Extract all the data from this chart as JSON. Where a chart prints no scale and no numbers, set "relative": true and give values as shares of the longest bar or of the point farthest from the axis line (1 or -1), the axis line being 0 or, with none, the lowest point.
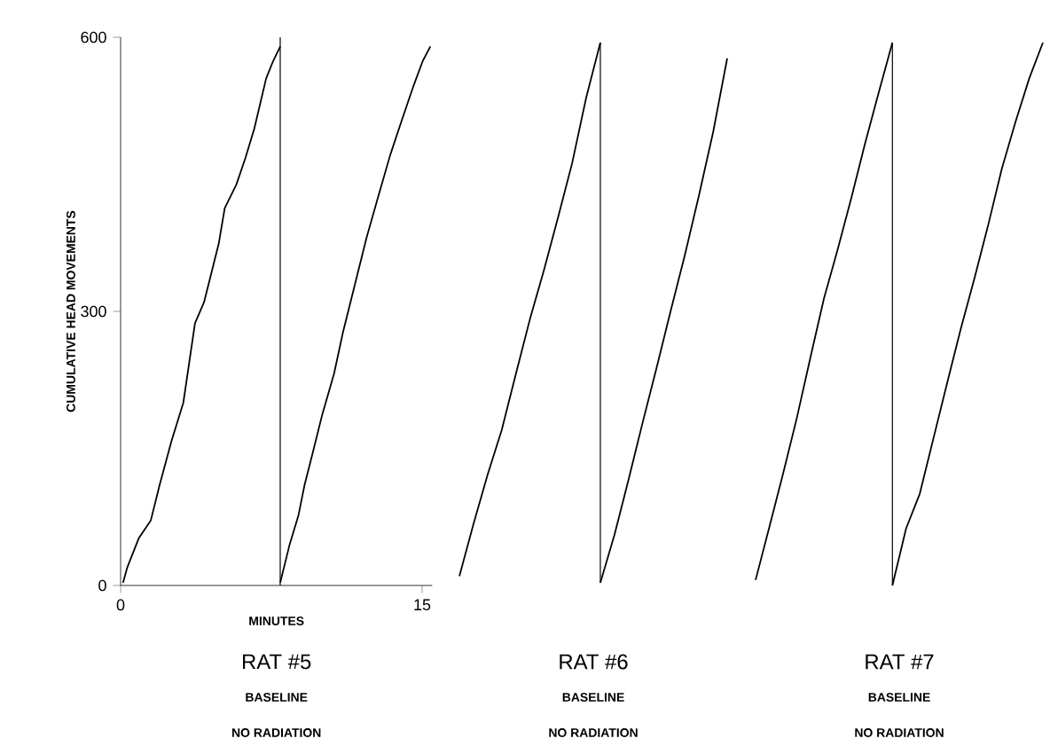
{
  "chart_data": [
    {
      "type": "line",
      "title": "RAT #5",
      "subtitle": "BASELINE",
      "annotations": [
        "NO RADIATION"
      ],
      "xlabel": "MINUTES",
      "ylabel": "CUMULATIVE HEAD MOVEMENTS",
      "xlim": [
        0,
        15.5
      ],
      "ylim": [
        0,
        600
      ],
      "xticks": [
        0,
        15
      ],
      "yticks": [
        0,
        300,
        600
      ],
      "marker": "none",
      "series": [
        {
          "color": "#000000",
          "x": [
            0.12,
            0.32,
            0.91,
            1.5,
            1.94,
            2.53,
            3.12,
            3.7,
            4.15,
            4.88,
            5.18,
            5.76,
            6.21,
            6.65,
            7.24,
            7.59,
            7.94
          ],
          "values": [
            3,
            19,
            52,
            71,
            110,
            158,
            200,
            287,
            310,
            374,
            413,
            439,
            468,
            500,
            555,
            574,
            590
          ]
        },
        {
          "color": "#000000",
          "x": [
            7.94,
            8.41,
            8.85,
            9.15,
            9.59,
            10.03,
            10.62,
            11.06,
            11.65,
            12.24,
            12.82,
            13.41,
            14.0,
            14.59,
            15.03,
            15.41
          ],
          "values": [
            3,
            45,
            77,
            110,
            148,
            187,
            232,
            277,
            329,
            381,
            426,
            471,
            510,
            548,
            574,
            590
          ]
        }
      ],
      "ref_lines": [
        {
          "axis": "x",
          "value": 7.94,
          "color": "#000000"
        }
      ]
    },
    {
      "type": "line",
      "title": "RAT #6",
      "subtitle": "BASELINE",
      "annotations": [
        "NO RADIATION"
      ],
      "relative": true,
      "marker": "none",
      "categories": [
        null,
        null,
        null,
        null,
        null,
        null,
        null,
        null,
        null,
        null,
        null,
        null,
        null,
        null,
        null,
        null,
        null,
        null,
        null,
        null
      ],
      "series": [
        {
          "color": "#000000",
          "values": [
            0.017,
            0.113,
            0.204,
            0.286,
            0.389,
            0.49,
            0.581,
            0.678,
            0.778,
            0.899,
            1.0,
            null,
            null,
            null,
            null,
            null,
            null,
            null,
            null,
            null
          ]
        },
        {
          "color": "#000000",
          "values": [
            null,
            null,
            null,
            null,
            null,
            null,
            null,
            null,
            null,
            null,
            0.005,
            0.093,
            0.195,
            0.3,
            0.402,
            0.507,
            0.609,
            0.719,
            0.835,
            0.971
          ]
        }
      ]
    },
    {
      "type": "line",
      "title": "RAT #7",
      "subtitle": "BASELINE",
      "annotations": [
        "NO RADIATION"
      ],
      "relative": true,
      "marker": "none",
      "categories": [
        null,
        null,
        null,
        null,
        null,
        null,
        null,
        null,
        null,
        null,
        null,
        null,
        null,
        null,
        null,
        null,
        null,
        null,
        null,
        null,
        null,
        null
      ],
      "series": [
        {
          "color": "#000000",
          "values": [
            0.01,
            0.107,
            0.205,
            0.307,
            0.419,
            0.529,
            0.619,
            0.714,
            0.814,
            0.908,
            1.0,
            null,
            null,
            null,
            null,
            null,
            null,
            null,
            null,
            null,
            null,
            null
          ]
        },
        {
          "color": "#000000",
          "values": [
            null,
            null,
            null,
            null,
            null,
            null,
            null,
            null,
            null,
            null,
            0.0,
            0.105,
            0.169,
            0.271,
            0.373,
            0.473,
            0.566,
            0.664,
            0.768,
            0.854,
            0.934,
            1.0
          ]
        }
      ]
    }
  ]
}
